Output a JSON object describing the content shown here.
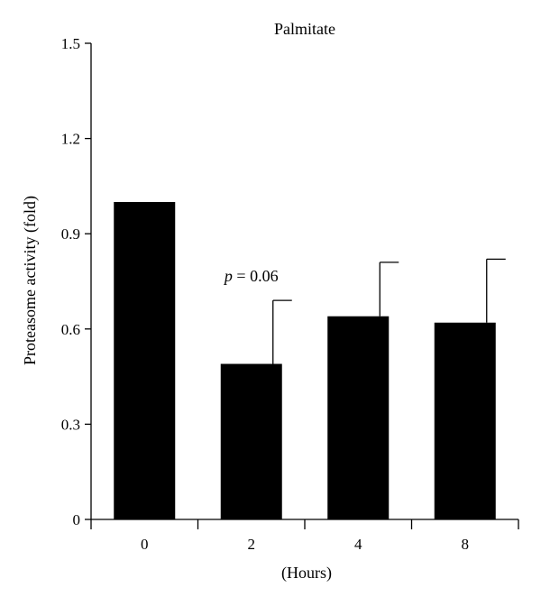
{
  "chart_data": {
    "type": "bar",
    "title": "Palmitate",
    "xlabel": "(Hours)",
    "ylabel": "Proteasome activity (fold)",
    "categories": [
      "0",
      "2",
      "4",
      "8"
    ],
    "values": [
      1.0,
      0.49,
      0.64,
      0.62
    ],
    "error_bars": [
      0.0,
      0.2,
      0.17,
      0.2
    ],
    "ylim": [
      0,
      1.5
    ],
    "yticks": [
      0,
      0.3,
      0.6,
      0.9,
      1.2,
      1.5
    ],
    "ytick_labels": [
      "0",
      "0.3",
      "0.6",
      "0.9",
      "1.2",
      "1.5"
    ],
    "bar_color": "#000000",
    "grid": false,
    "legend": "none",
    "annotations": [
      {
        "category": "2",
        "prefix": "p",
        "text": " = 0.06"
      }
    ]
  }
}
